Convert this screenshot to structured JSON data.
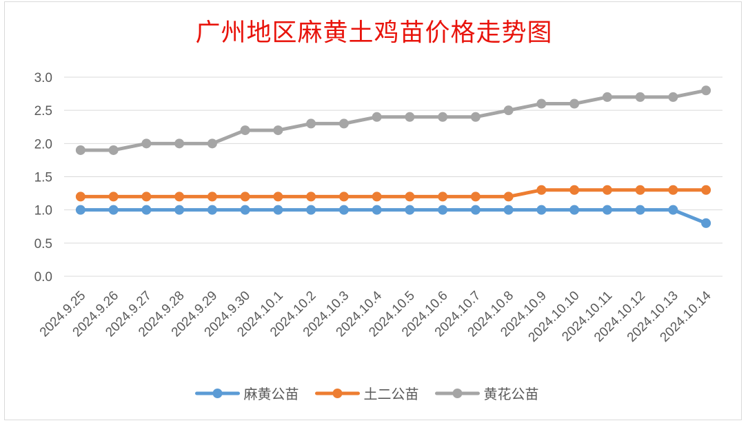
{
  "chart_data": {
    "type": "line",
    "title": "广州地区麻黄土鸡苗价格走势图",
    "categories": [
      "2024.9.25",
      "2024.9.26",
      "2024.9.27",
      "2024.9.28",
      "2024.9.29",
      "2024.9.30",
      "2024.10.1",
      "2024.10.2",
      "2024.10.3",
      "2024.10.4",
      "2024.10.5",
      "2024.10.6",
      "2024.10.7",
      "2024.10.8",
      "2024.10.9",
      "2024.10.10",
      "2024.10.11",
      "2024.10.12",
      "2024.10.13",
      "2024.10.14"
    ],
    "series": [
      {
        "name": "麻黄公苗",
        "color": "#5b9bd5",
        "values": [
          1.0,
          1.0,
          1.0,
          1.0,
          1.0,
          1.0,
          1.0,
          1.0,
          1.0,
          1.0,
          1.0,
          1.0,
          1.0,
          1.0,
          1.0,
          1.0,
          1.0,
          1.0,
          1.0,
          0.8
        ]
      },
      {
        "name": "土二公苗",
        "color": "#ed7d31",
        "values": [
          1.2,
          1.2,
          1.2,
          1.2,
          1.2,
          1.2,
          1.2,
          1.2,
          1.2,
          1.2,
          1.2,
          1.2,
          1.2,
          1.2,
          1.3,
          1.3,
          1.3,
          1.3,
          1.3,
          1.3
        ]
      },
      {
        "name": "黄花公苗",
        "color": "#a5a5a5",
        "values": [
          1.9,
          1.9,
          2.0,
          2.0,
          2.0,
          2.2,
          2.2,
          2.3,
          2.3,
          2.4,
          2.4,
          2.4,
          2.4,
          2.5,
          2.6,
          2.6,
          2.7,
          2.7,
          2.7,
          2.8
        ]
      }
    ],
    "yticks": [
      "0.0",
      "0.5",
      "1.0",
      "1.5",
      "2.0",
      "2.5",
      "3.0"
    ],
    "ylim": [
      0,
      3.0
    ],
    "grid": true,
    "legend": "bottom"
  }
}
